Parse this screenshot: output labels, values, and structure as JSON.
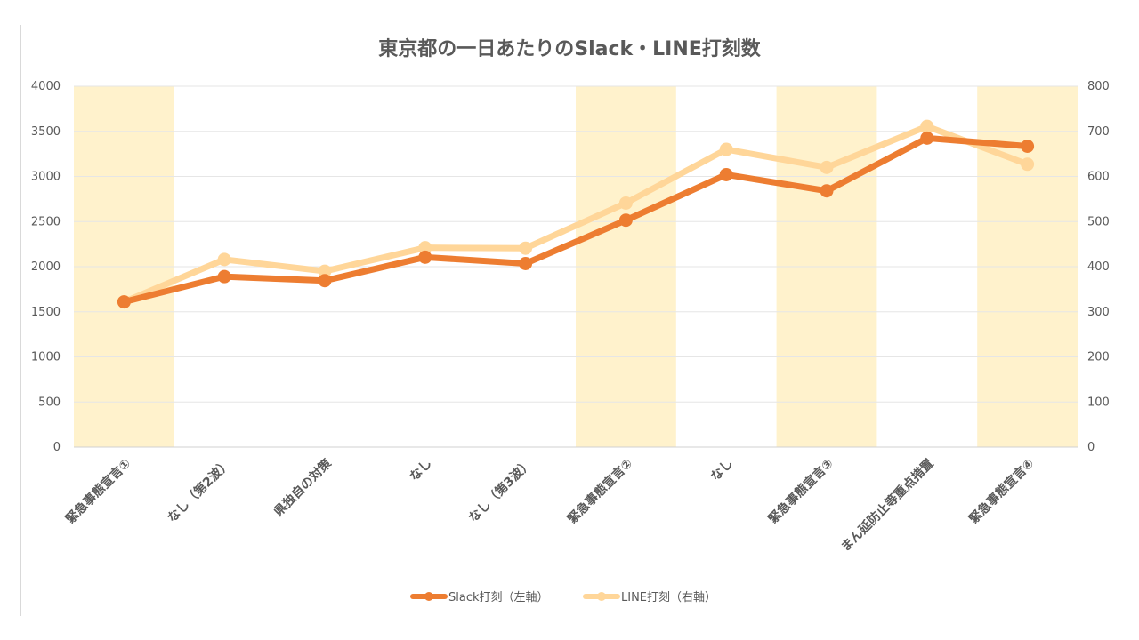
{
  "chart_data": {
    "type": "line",
    "title": "東京都の一日あたりのSlack・LINE打刻数",
    "categories": [
      "緊急事態宣言①",
      "なし（第2波）",
      "県独自の対策",
      "なし",
      "なし（第3波）",
      "緊急事態宣言②",
      "なし",
      "緊急事態宣言③",
      "まん延防止等重点措置",
      "緊急事態宣言④"
    ],
    "highlighted_categories": [
      0,
      5,
      7,
      9
    ],
    "series": [
      {
        "name": "Slack打刻（左軸）",
        "axis": "left",
        "color": "#ED7D31",
        "values": [
          1610,
          1890,
          1845,
          2105,
          2035,
          2515,
          3020,
          2840,
          3425,
          3335
        ]
      },
      {
        "name": "LINE打刻（右軸）",
        "axis": "right",
        "color": "#FFD699",
        "values": [
          322,
          416,
          390,
          442,
          441,
          541,
          660,
          620,
          711,
          627
        ]
      }
    ],
    "y_left": {
      "min": 0,
      "max": 4000,
      "ticks": [
        "0",
        "500",
        "1000",
        "1500",
        "2000",
        "2500",
        "3000",
        "3500",
        "4000"
      ]
    },
    "y_right": {
      "min": 0,
      "max": 800,
      "ticks": [
        "0",
        "100",
        "200",
        "300",
        "400",
        "500",
        "600",
        "700",
        "800"
      ]
    },
    "highlight_color": "#FFF2CC",
    "grid_color": "#e6e6e6",
    "legend_position": "bottom"
  }
}
